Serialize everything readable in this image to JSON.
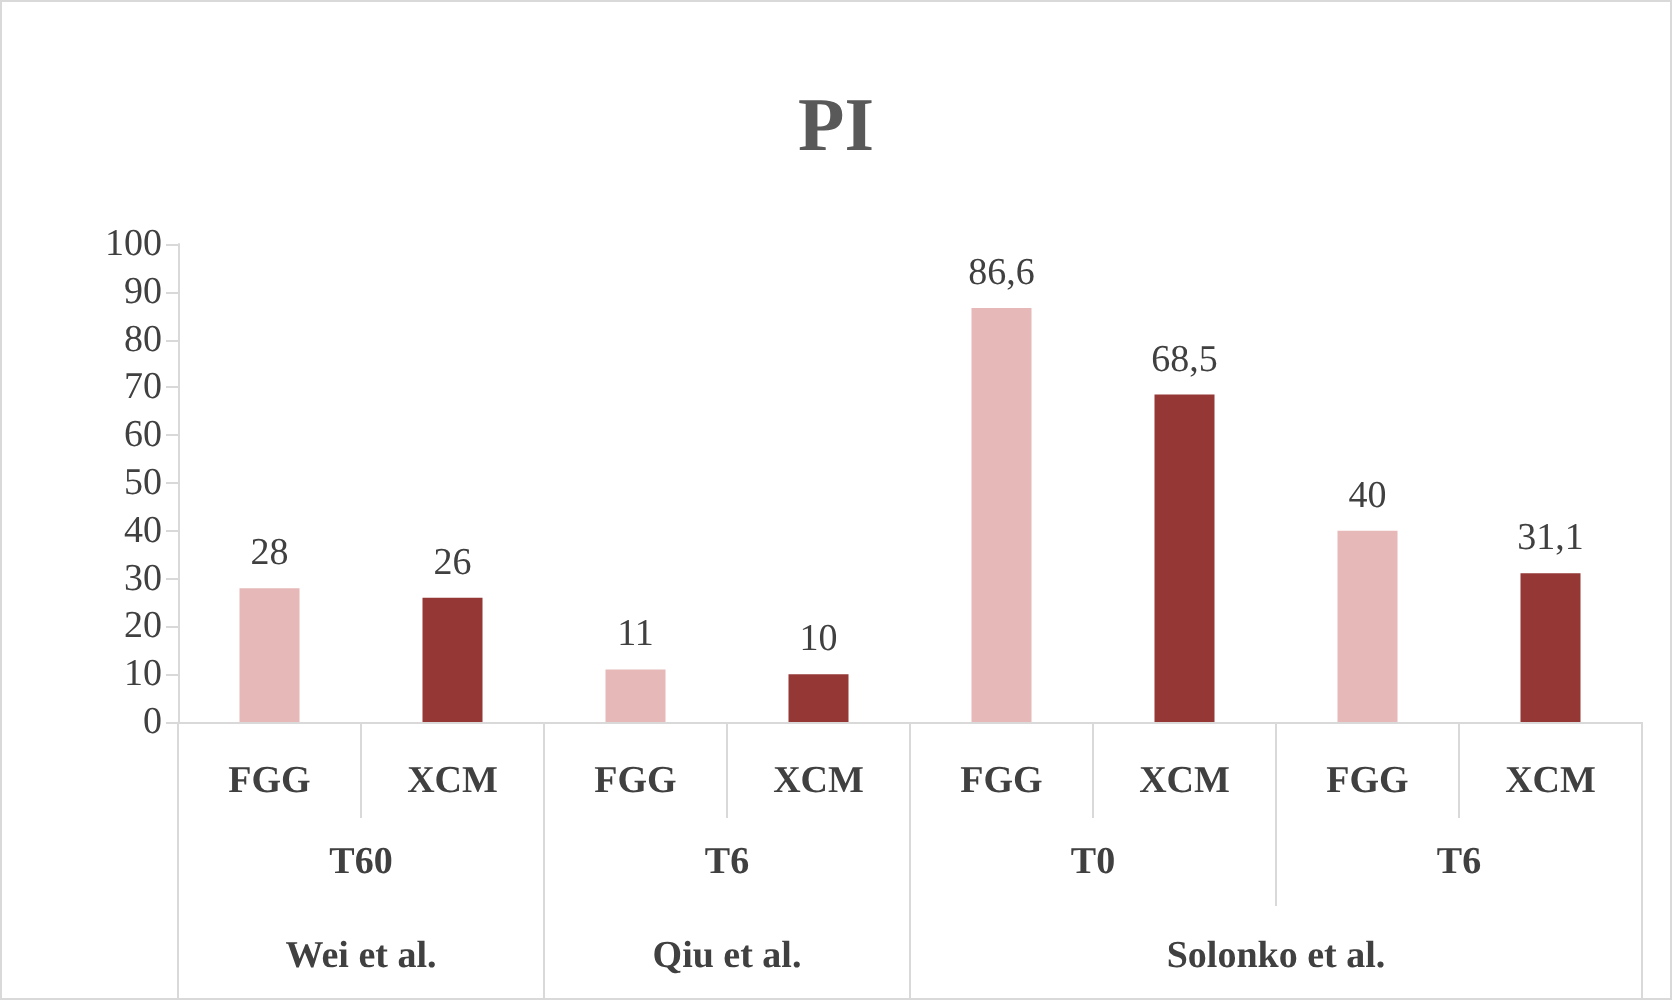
{
  "chart_data": {
    "type": "bar",
    "title": "PI",
    "categories": [
      "FGG",
      "XCM",
      "FGG",
      "XCM",
      "FGG",
      "XCM",
      "FGG",
      "XCM"
    ],
    "values": [
      28,
      26,
      11,
      10,
      86.6,
      68.5,
      40,
      31.1
    ],
    "colors": [
      "#e6b8b7",
      "#953735",
      "#e6b8b7",
      "#953735",
      "#e6b8b7",
      "#953735",
      "#e6b8b7",
      "#953735"
    ],
    "value_labels": [
      "28",
      "26",
      "11",
      "10",
      "86,6",
      "68,5",
      "40",
      "31,1"
    ],
    "annotations": [
      "T60",
      "T6",
      "T0",
      "T6",
      "Wei et al.",
      "Qiu et al.",
      "Solonko et al."
    ],
    "ylim": [
      0,
      100
    ],
    "yticks": [
      0,
      10,
      20,
      30,
      40,
      50,
      60,
      70,
      80,
      90,
      100
    ],
    "grid": false
  }
}
